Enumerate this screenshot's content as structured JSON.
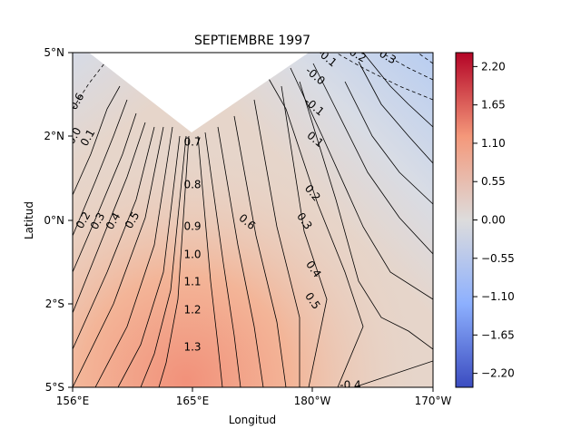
{
  "chart_data": {
    "type": "heatmap",
    "title": "SEPTIEMBRE 1997",
    "xlabel": "Longitud",
    "ylabel": "Latitud",
    "x_ticks": [
      "156°E",
      "165°E",
      "180°W",
      "170°W"
    ],
    "y_ticks": [
      "5°N",
      "2°N",
      "0°N",
      "2°S",
      "5°S"
    ],
    "colorbar": {
      "ticks": [
        "2.20",
        "1.65",
        "1.10",
        "0.55",
        "0.00",
        "−0.55",
        "−1.10",
        "−1.65",
        "−2.20"
      ],
      "range": [
        -2.4,
        2.4
      ],
      "colormap": "coolwarm"
    },
    "contour_labels": [
      {
        "text": "0.7"
      },
      {
        "text": "0.8"
      },
      {
        "text": "0.9"
      },
      {
        "text": "1.0"
      },
      {
        "text": "1.1"
      },
      {
        "text": "1.2"
      },
      {
        "text": "1.3"
      },
      {
        "text": "0.6"
      },
      {
        "text": "0.5"
      },
      {
        "text": "0.4"
      },
      {
        "text": "0.3"
      },
      {
        "text": "0.2"
      },
      {
        "text": "0.1"
      },
      {
        "text": "0.0"
      },
      {
        "text": "0.1"
      },
      {
        "text": "0.2"
      },
      {
        "text": "0.3"
      },
      {
        "text": "0.4"
      },
      {
        "text": "0.5"
      },
      {
        "text": "0.6"
      },
      {
        "text": "-0.1"
      },
      {
        "text": "-0.0"
      },
      {
        "text": "-0.1"
      },
      {
        "text": "-0.2"
      },
      {
        "text": "-0.3"
      },
      {
        "text": "-0.4"
      },
      {
        "text": "0.4"
      }
    ],
    "colors": {
      "peak": "#f2997a",
      "mid": "#e8cdb9",
      "neutral": "#dcdde1",
      "cool": "#b9cff0"
    }
  }
}
